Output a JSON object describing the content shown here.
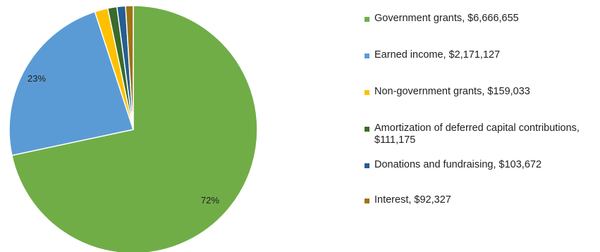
{
  "chart_data": {
    "type": "pie",
    "title": "",
    "start_angle_deg": 0,
    "direction": "clockwise",
    "legend_position": "right",
    "slices": [
      {
        "label": "Government grants, $6,666,655",
        "value": 6666655,
        "color": "#70ad47",
        "pct_label": "72%"
      },
      {
        "label": "Earned income, $2,171,127",
        "value": 2171127,
        "color": "#5b9bd5",
        "pct_label": "23%"
      },
      {
        "label": "Non-government grants, $159,033",
        "value": 159033,
        "color": "#ffc000",
        "pct_label": ""
      },
      {
        "label": "Amortization of deferred capital contributions,\n$111,175",
        "value": 111175,
        "color": "#3a6b2a",
        "pct_label": ""
      },
      {
        "label": "Donations and fundraising, $103,672",
        "value": 103672,
        "color": "#255e91",
        "pct_label": ""
      },
      {
        "label": "Interest, $92,327",
        "value": 92327,
        "color": "#9e7314",
        "pct_label": ""
      }
    ]
  }
}
